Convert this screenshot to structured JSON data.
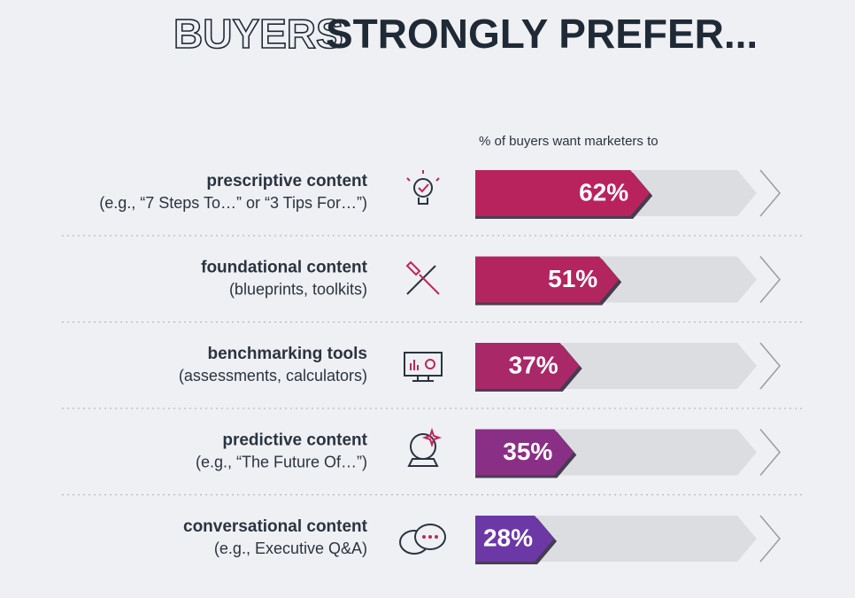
{
  "chart_data": {
    "type": "bar",
    "orientation": "horizontal",
    "title_parts": [
      "BUYERS",
      "STRONGLY PREFER..."
    ],
    "axis_label": "% of buyers want marketers to",
    "categories": [
      "prescriptive content",
      "foundational content",
      "benchmarking tools",
      "predictive content",
      "conversational content"
    ],
    "descriptions": [
      "(e.g., “7 Steps To…” or “3 Tips For…”)",
      "(blueprints, toolkits)",
      "(assessments, calculators)",
      "(e.g., “The Future Of…”)",
      "(e.g., Executive Q&A)"
    ],
    "values": [
      62,
      51,
      37,
      35,
      28
    ],
    "value_labels": [
      "62%",
      "51%",
      "37%",
      "35%",
      "28%"
    ],
    "colors": [
      "#b8235e",
      "#b2255f",
      "#a82868",
      "#8a2f86",
      "#6b38a6"
    ],
    "xlim": [
      0,
      100
    ]
  }
}
